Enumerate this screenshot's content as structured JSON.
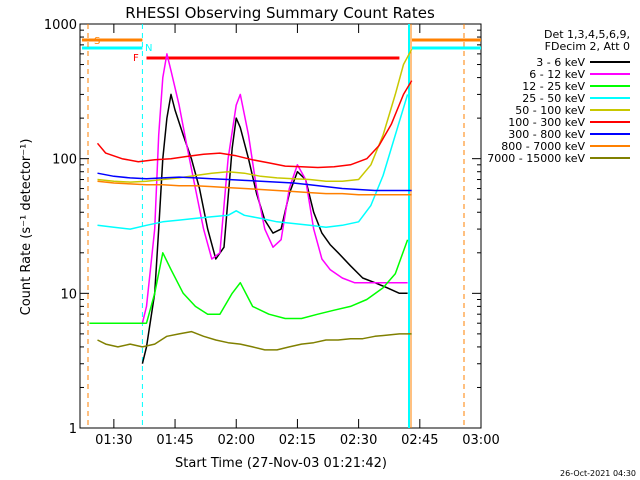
{
  "chart_data": {
    "type": "line",
    "title": "RHESSI Observing Summary Count Rates",
    "xlabel": "Start Time (27-Nov-03 01:21:42)",
    "ylabel": "Count Rate (s⁻¹ detector⁻¹)",
    "yscale": "log",
    "ylim": [
      1,
      1000
    ],
    "xlim": [
      "01:21:42",
      "03:00:00"
    ],
    "yticks": [
      "1",
      "10",
      "100",
      "1000"
    ],
    "xticks": [
      "01:30",
      "01:45",
      "02:00",
      "02:15",
      "02:30",
      "02:45",
      "03:00"
    ],
    "footer": "26-Oct-2021 04:30",
    "legend_header": [
      "Det 1,3,4,5,6,9,",
      "FDecim 2, Att 0"
    ],
    "annotations": {
      "saa_flag": "S",
      "night_flag": "N",
      "flare_flag": "F"
    },
    "flag_bars": [
      {
        "name": "S",
        "start": "01:21:42",
        "end": "01:37:00",
        "color": "#ff8000"
      },
      {
        "name": "N",
        "start": "01:21:42",
        "end": "01:37:00",
        "color": "#00ffff"
      },
      {
        "name": "F",
        "start": "01:38:00",
        "end": "02:40:00",
        "color": "#ff0000"
      }
    ],
    "series": [
      {
        "name": "3 - 6 keV",
        "color": "#000000",
        "points": [
          [
            "01:37",
            "3"
          ],
          [
            "01:38",
            "4"
          ],
          [
            "01:40",
            "10"
          ],
          [
            "01:41",
            "30"
          ],
          [
            "01:42",
            "100"
          ],
          [
            "01:43",
            "200"
          ],
          [
            "01:44",
            "300"
          ],
          [
            "01:45",
            "230"
          ],
          [
            "01:47",
            "150"
          ],
          [
            "01:49",
            "100"
          ],
          [
            "01:51",
            "60"
          ],
          [
            "01:53",
            "30"
          ],
          [
            "01:55",
            "18"
          ],
          [
            "01:57",
            "22"
          ],
          [
            "01:59",
            "120"
          ],
          [
            "02:00",
            "200"
          ],
          [
            "02:01",
            "170"
          ],
          [
            "02:03",
            "100"
          ],
          [
            "02:05",
            "55"
          ],
          [
            "02:07",
            "35"
          ],
          [
            "02:09",
            "28"
          ],
          [
            "02:11",
            "30"
          ],
          [
            "02:13",
            "55"
          ],
          [
            "02:15",
            "80"
          ],
          [
            "02:17",
            "70"
          ],
          [
            "02:19",
            "40"
          ],
          [
            "02:21",
            "28"
          ],
          [
            "02:23",
            "23"
          ],
          [
            "02:25",
            "20"
          ],
          [
            "02:28",
            "16"
          ],
          [
            "02:31",
            "13"
          ],
          [
            "02:34",
            "12"
          ],
          [
            "02:37",
            "11"
          ],
          [
            "02:40",
            "10"
          ],
          [
            "02:42",
            "10"
          ]
        ]
      },
      {
        "name": "6 - 12 keV",
        "color": "#ff00ff",
        "points": [
          [
            "01:37",
            "6"
          ],
          [
            "01:38",
            "8"
          ],
          [
            "01:40",
            "30"
          ],
          [
            "01:41",
            "150"
          ],
          [
            "01:42",
            "400"
          ],
          [
            "01:43",
            "600"
          ],
          [
            "01:44",
            "450"
          ],
          [
            "01:46",
            "250"
          ],
          [
            "01:48",
            "120"
          ],
          [
            "01:50",
            "60"
          ],
          [
            "01:52",
            "30"
          ],
          [
            "01:54",
            "18"
          ],
          [
            "01:56",
            "20"
          ],
          [
            "01:58",
            "100"
          ],
          [
            "02:00",
            "250"
          ],
          [
            "02:01",
            "300"
          ],
          [
            "02:03",
            "150"
          ],
          [
            "02:05",
            "60"
          ],
          [
            "02:07",
            "30"
          ],
          [
            "02:09",
            "22"
          ],
          [
            "02:11",
            "25"
          ],
          [
            "02:13",
            "60"
          ],
          [
            "02:15",
            "90"
          ],
          [
            "02:17",
            "70"
          ],
          [
            "02:19",
            "30"
          ],
          [
            "02:21",
            "18"
          ],
          [
            "02:23",
            "15"
          ],
          [
            "02:26",
            "13"
          ],
          [
            "02:29",
            "12"
          ],
          [
            "02:32",
            "12"
          ],
          [
            "02:35",
            "12"
          ],
          [
            "02:38",
            "12"
          ],
          [
            "02:40",
            "12"
          ],
          [
            "02:42",
            "12"
          ]
        ]
      },
      {
        "name": "12 - 25 keV",
        "color": "#00ff00",
        "points": [
          [
            "01:24",
            "6"
          ],
          [
            "01:30",
            "6"
          ],
          [
            "01:36",
            "6"
          ],
          [
            "01:38",
            "6"
          ],
          [
            "01:40",
            "10"
          ],
          [
            "01:42",
            "20"
          ],
          [
            "01:44",
            "15"
          ],
          [
            "01:47",
            "10"
          ],
          [
            "01:50",
            "8"
          ],
          [
            "01:53",
            "7"
          ],
          [
            "01:56",
            "7"
          ],
          [
            "01:59",
            "10"
          ],
          [
            "02:01",
            "12"
          ],
          [
            "02:04",
            "8"
          ],
          [
            "02:08",
            "7"
          ],
          [
            "02:12",
            "6.5"
          ],
          [
            "02:16",
            "6.5"
          ],
          [
            "02:20",
            "7"
          ],
          [
            "02:24",
            "7.5"
          ],
          [
            "02:28",
            "8"
          ],
          [
            "02:32",
            "9"
          ],
          [
            "02:36",
            "11"
          ],
          [
            "02:39",
            "14"
          ],
          [
            "02:42",
            "25"
          ]
        ]
      },
      {
        "name": "25 - 50 keV",
        "color": "#00ffff",
        "points": [
          [
            "01:26",
            "32"
          ],
          [
            "01:30",
            "31"
          ],
          [
            "01:34",
            "30"
          ],
          [
            "01:38",
            "32"
          ],
          [
            "01:42",
            "34"
          ],
          [
            "01:46",
            "35"
          ],
          [
            "01:50",
            "36"
          ],
          [
            "01:54",
            "37"
          ],
          [
            "01:58",
            "38"
          ],
          [
            "02:00",
            "41"
          ],
          [
            "02:02",
            "38"
          ],
          [
            "02:06",
            "36"
          ],
          [
            "02:10",
            "34"
          ],
          [
            "02:14",
            "33"
          ],
          [
            "02:18",
            "32"
          ],
          [
            "02:22",
            "31"
          ],
          [
            "02:26",
            "32"
          ],
          [
            "02:30",
            "34"
          ],
          [
            "02:33",
            "45"
          ],
          [
            "02:36",
            "75"
          ],
          [
            "02:39",
            "150"
          ],
          [
            "02:42",
            "300"
          ]
        ]
      },
      {
        "name": "50 - 100 keV",
        "color": "#c8c800",
        "points": [
          [
            "01:26",
            "70"
          ],
          [
            "01:30",
            "68"
          ],
          [
            "01:34",
            "67"
          ],
          [
            "01:38",
            "68"
          ],
          [
            "01:42",
            "70"
          ],
          [
            "01:46",
            "72"
          ],
          [
            "01:50",
            "75"
          ],
          [
            "01:54",
            "78"
          ],
          [
            "01:58",
            "80"
          ],
          [
            "02:02",
            "78"
          ],
          [
            "02:06",
            "74"
          ],
          [
            "02:10",
            "72"
          ],
          [
            "02:14",
            "71"
          ],
          [
            "02:18",
            "70"
          ],
          [
            "02:22",
            "68"
          ],
          [
            "02:26",
            "68"
          ],
          [
            "02:30",
            "70"
          ],
          [
            "02:33",
            "90"
          ],
          [
            "02:36",
            "150"
          ],
          [
            "02:39",
            "300"
          ],
          [
            "02:41",
            "500"
          ],
          [
            "02:43",
            "650"
          ]
        ]
      },
      {
        "name": "100 - 300 keV",
        "color": "#ff0000",
        "points": [
          [
            "01:26",
            "130"
          ],
          [
            "01:28",
            "110"
          ],
          [
            "01:32",
            "100"
          ],
          [
            "01:36",
            "95"
          ],
          [
            "01:40",
            "98"
          ],
          [
            "01:44",
            "100"
          ],
          [
            "01:48",
            "104"
          ],
          [
            "01:52",
            "108"
          ],
          [
            "01:56",
            "110"
          ],
          [
            "02:00",
            "105"
          ],
          [
            "02:04",
            "98"
          ],
          [
            "02:08",
            "93"
          ],
          [
            "02:12",
            "88"
          ],
          [
            "02:16",
            "87"
          ],
          [
            "02:20",
            "86"
          ],
          [
            "02:24",
            "87"
          ],
          [
            "02:28",
            "90"
          ],
          [
            "02:32",
            "100"
          ],
          [
            "02:35",
            "125"
          ],
          [
            "02:38",
            "180"
          ],
          [
            "02:41",
            "300"
          ],
          [
            "02:43",
            "380"
          ]
        ]
      },
      {
        "name": "300 - 800 keV",
        "color": "#0000ff",
        "points": [
          [
            "01:26",
            "78"
          ],
          [
            "01:30",
            "74"
          ],
          [
            "01:34",
            "72"
          ],
          [
            "01:38",
            "71"
          ],
          [
            "01:42",
            "72"
          ],
          [
            "01:46",
            "73"
          ],
          [
            "01:50",
            "72"
          ],
          [
            "01:54",
            "71"
          ],
          [
            "01:58",
            "70"
          ],
          [
            "02:02",
            "69"
          ],
          [
            "02:06",
            "68"
          ],
          [
            "02:10",
            "67"
          ],
          [
            "02:14",
            "66"
          ],
          [
            "02:18",
            "64"
          ],
          [
            "02:22",
            "62"
          ],
          [
            "02:26",
            "60"
          ],
          [
            "02:30",
            "59"
          ],
          [
            "02:34",
            "58"
          ],
          [
            "02:38",
            "58"
          ],
          [
            "02:43",
            "58"
          ]
        ]
      },
      {
        "name": "800 - 7000 keV",
        "color": "#ff8000",
        "points": [
          [
            "01:26",
            "68"
          ],
          [
            "01:30",
            "66"
          ],
          [
            "01:34",
            "65"
          ],
          [
            "01:38",
            "64"
          ],
          [
            "01:42",
            "64"
          ],
          [
            "01:46",
            "63"
          ],
          [
            "01:50",
            "63"
          ],
          [
            "01:54",
            "62"
          ],
          [
            "01:58",
            "61"
          ],
          [
            "02:02",
            "60"
          ],
          [
            "02:06",
            "59"
          ],
          [
            "02:10",
            "58"
          ],
          [
            "02:14",
            "57"
          ],
          [
            "02:18",
            "56"
          ],
          [
            "02:22",
            "55"
          ],
          [
            "02:26",
            "55"
          ],
          [
            "02:30",
            "54"
          ],
          [
            "02:34",
            "54"
          ],
          [
            "02:38",
            "54"
          ],
          [
            "02:43",
            "54"
          ]
        ]
      },
      {
        "name": "7000 - 15000 keV",
        "color": "#808000",
        "points": [
          [
            "01:26",
            "4.5"
          ],
          [
            "01:28",
            "4.2"
          ],
          [
            "01:31",
            "4.0"
          ],
          [
            "01:34",
            "4.2"
          ],
          [
            "01:37",
            "4.0"
          ],
          [
            "01:40",
            "4.2"
          ],
          [
            "01:43",
            "4.8"
          ],
          [
            "01:46",
            "5.0"
          ],
          [
            "01:49",
            "5.2"
          ],
          [
            "01:52",
            "4.8"
          ],
          [
            "01:55",
            "4.5"
          ],
          [
            "01:58",
            "4.3"
          ],
          [
            "02:01",
            "4.2"
          ],
          [
            "02:04",
            "4.0"
          ],
          [
            "02:07",
            "3.8"
          ],
          [
            "02:10",
            "3.8"
          ],
          [
            "02:13",
            "4.0"
          ],
          [
            "02:16",
            "4.2"
          ],
          [
            "02:19",
            "4.3"
          ],
          [
            "02:22",
            "4.5"
          ],
          [
            "02:25",
            "4.5"
          ],
          [
            "02:28",
            "4.6"
          ],
          [
            "02:31",
            "4.6"
          ],
          [
            "02:34",
            "4.8"
          ],
          [
            "02:37",
            "4.9"
          ],
          [
            "02:40",
            "5.0"
          ],
          [
            "02:43",
            "5.0"
          ]
        ]
      }
    ]
  }
}
